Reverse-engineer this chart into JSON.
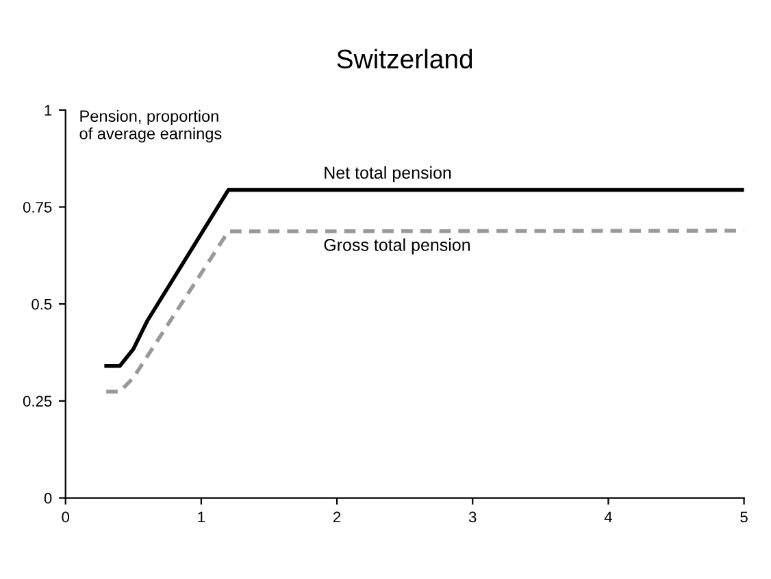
{
  "chart_data": {
    "type": "line",
    "title": "Switzerland",
    "ylabel": "Pension, proportion\nof average earnings",
    "xlim": [
      0,
      5
    ],
    "ylim": [
      0,
      1
    ],
    "xticks": [
      0,
      1,
      2,
      3,
      4,
      5
    ],
    "yticks": [
      0,
      0.25,
      0.5,
      0.75,
      1
    ],
    "grid": false,
    "legend": false,
    "series": [
      {
        "name": "Net total pension",
        "color": "#000000",
        "line_style": "solid",
        "x": [
          0.3,
          0.4,
          0.5,
          0.6,
          1.2,
          5
        ],
        "values": [
          0.34,
          0.34,
          0.384,
          0.455,
          0.794,
          0.794
        ]
      },
      {
        "name": "Gross total pension",
        "color": "#999999",
        "line_style": "dashed",
        "x": [
          0.3,
          0.4,
          0.5,
          1.2,
          5
        ],
        "values": [
          0.274,
          0.274,
          0.31,
          0.687,
          0.689
        ]
      }
    ]
  }
}
